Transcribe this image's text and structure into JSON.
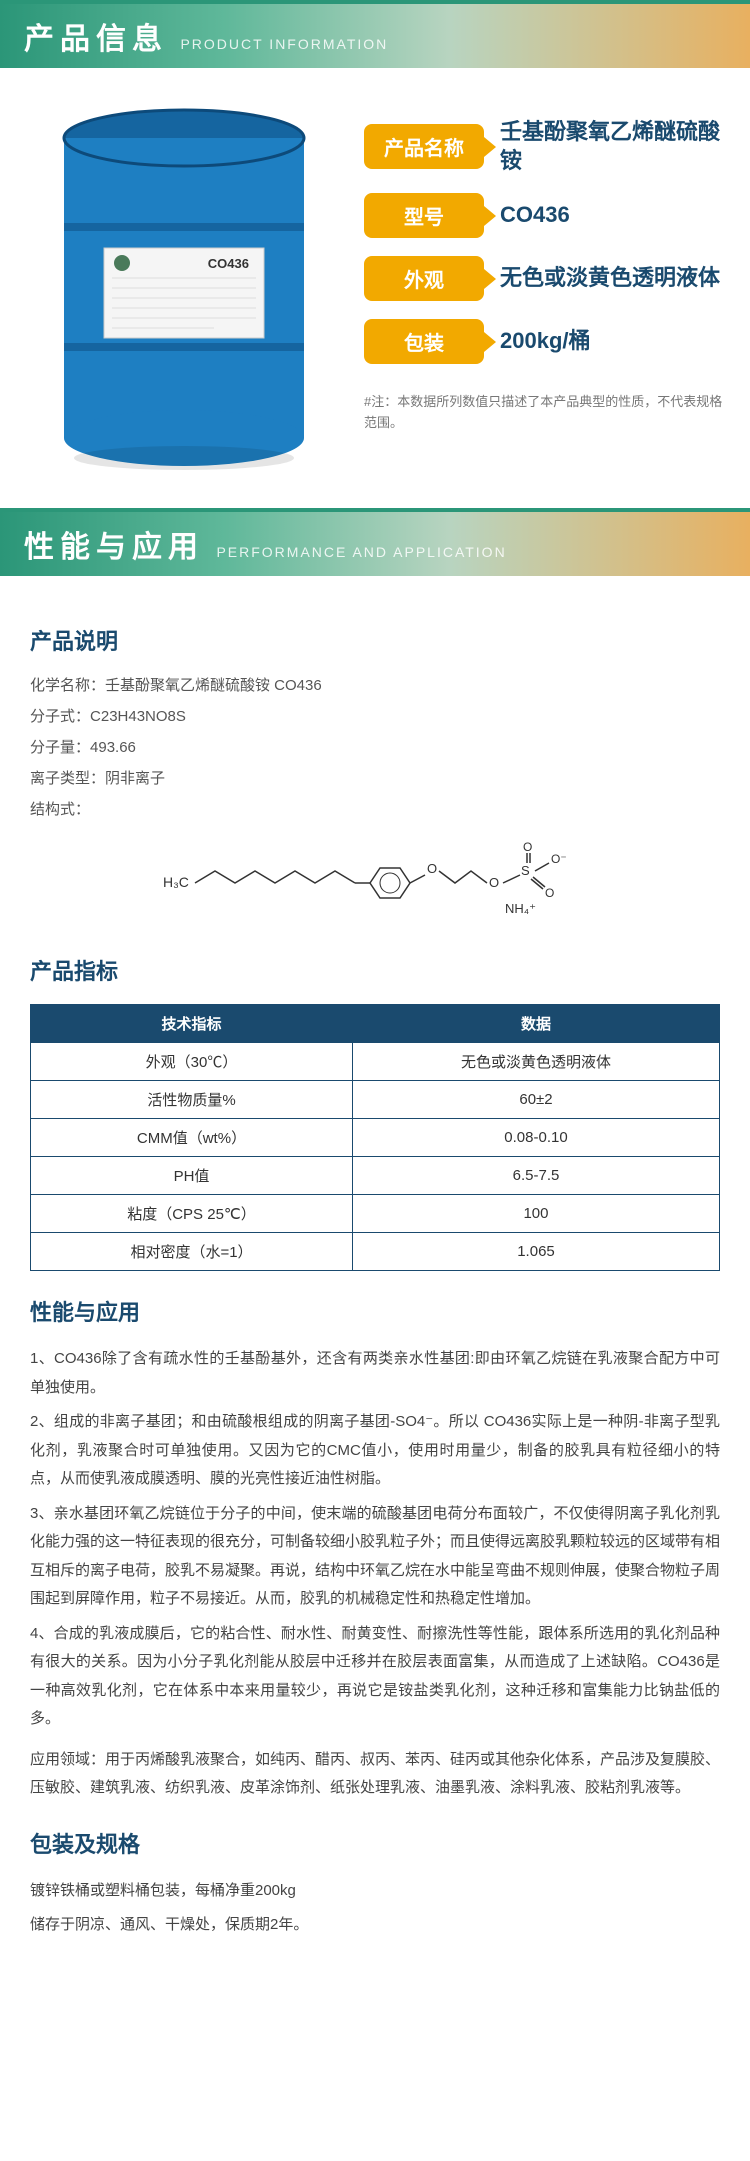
{
  "sections": {
    "info_cn": "产品信息",
    "info_en": "PRODUCT INFORMATION",
    "perf_cn": "性能与应用",
    "perf_en": "PERFORMANCE AND APPLICATION"
  },
  "product": {
    "name_label": "产品名称",
    "name_value": "壬基酚聚氧乙烯醚硫酸铵",
    "model_label": "型号",
    "model_value": "CO436",
    "appearance_label": "外观",
    "appearance_value": "无色或淡黄色透明液体",
    "package_label": "包装",
    "package_value": "200kg/桶",
    "footnote": "#注：本数据所列数值只描述了本产品典型的性质，不代表规格范围。"
  },
  "drum": {
    "body_color": "#1e7fc2",
    "rim_color": "#1565a0",
    "label_bg": "#f5f5f5",
    "label_title": "CO436"
  },
  "desc": {
    "title": "产品说明",
    "chem_name_k": "化学名称：",
    "chem_name_v": "壬基酚聚氧乙烯醚硫酸铵 CO436",
    "formula_k": "分子式：",
    "formula_v": "C23H43NO8S",
    "mw_k": "分子量：",
    "mw_v": "493.66",
    "ion_k": "离子类型：",
    "ion_v": "阴非离子",
    "struct_k": "结构式：",
    "struct_left": "H₃C",
    "struct_nh4": "NH₄⁺"
  },
  "spec": {
    "title": "产品指标",
    "col1": "技术指标",
    "col2": "数据",
    "rows": [
      {
        "k": "外观（30℃）",
        "v": "无色或淡黄色透明液体"
      },
      {
        "k": "活性物质量%",
        "v": "60±2"
      },
      {
        "k": "CMM值（wt%）",
        "v": "0.08-0.10"
      },
      {
        "k": "PH值",
        "v": "6.5-7.5"
      },
      {
        "k": "粘度（CPS 25℃）",
        "v": "100"
      },
      {
        "k": "相对密度（水=1）",
        "v": "1.065"
      }
    ]
  },
  "application": {
    "title": "性能与应用",
    "p1": "1、CO436除了含有疏水性的壬基酚基外，还含有两类亲水性基团:即由环氧乙烷链在乳液聚合配方中可单独使用。",
    "p2": "2、组成的非离子基团；和由硫酸根组成的阴离子基团-SO4⁻。所以 CO436实际上是一种阴-非离子型乳化剂，乳液聚合时可单独使用。又因为它的CMC值小，使用时用量少，制备的胶乳具有粒径细小的特点，从而使乳液成膜透明、膜的光亮性接近油性树脂。",
    "p3": "3、亲水基团环氧乙烷链位于分子的中间，使末端的硫酸基团电荷分布面较广，不仅使得阴离子乳化剂乳化能力强的这一特征表现的很充分，可制备较细小胶乳粒子外；而且使得远离胶乳颗粒较远的区域带有相互相斥的离子电荷，胶乳不易凝聚。再说，结构中环氧乙烷在水中能呈弯曲不规则伸展，使聚合物粒子周围起到屏障作用，粒子不易接近。从而，胶乳的机械稳定性和热稳定性增加。",
    "p4": "4、合成的乳液成膜后，它的粘合性、耐水性、耐黄变性、耐擦洗性等性能，跟体系所选用的乳化剂品种有很大的关系。因为小分子乳化剂能从胶层中迁移并在胶层表面富集，从而造成了上述缺陷。CO436是一种高效乳化剂，它在体系中本来用量较少，再说它是铵盐类乳化剂，这种迁移和富集能力比钠盐低的多。",
    "p5": "应用领域：用于丙烯酸乳液聚合，如纯丙、醋丙、叔丙、苯丙、硅丙或其他杂化体系，产品涉及复膜胶、压敏胶、建筑乳液、纺织乳液、皮革涂饰剂、纸张处理乳液、油墨乳液、涂料乳液、胶粘剂乳液等。"
  },
  "pack": {
    "title": "包装及规格",
    "p1": "镀锌铁桶或塑料桶包装，每桶净重200kg",
    "p2": "储存于阴凉、通风、干燥处，保质期2年。"
  },
  "colors": {
    "accent": "#f2a900",
    "navy": "#1a4a6e"
  }
}
